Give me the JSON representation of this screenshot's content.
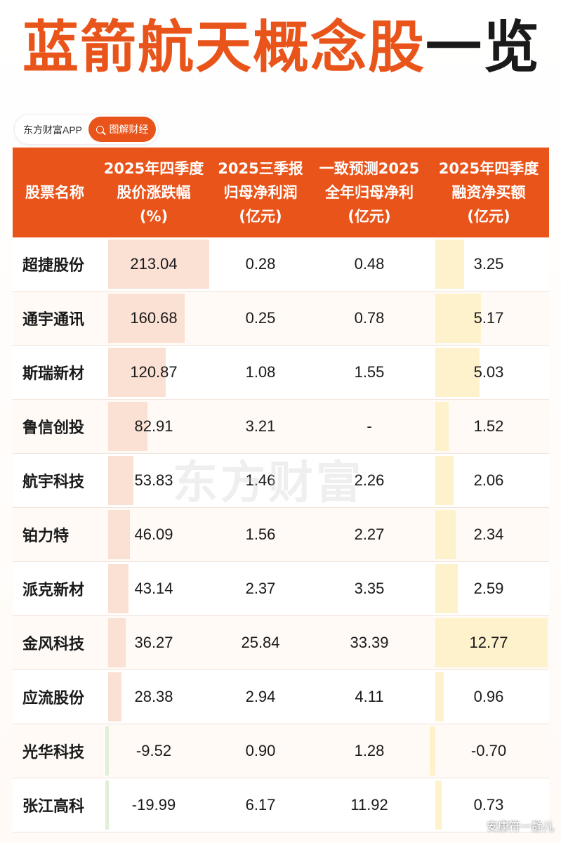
{
  "title": {
    "part1": "蓝箭航天概念股",
    "part2": "一览"
  },
  "brand": {
    "name": "东方财富APP",
    "button_label": "图解财经"
  },
  "watermark": "东方财富",
  "footer_mark": "安康符一静儿",
  "table": {
    "headers": [
      {
        "lines": [
          "股票名称"
        ]
      },
      {
        "lines": [
          "2025年四季度",
          "股价涨跌幅",
          "(%)"
        ]
      },
      {
        "lines": [
          "2025三季报",
          "归母净利润",
          "(亿元)"
        ]
      },
      {
        "lines": [
          "一致预测2025",
          "全年归母净利",
          "(亿元)"
        ]
      },
      {
        "lines": [
          "2025年四季度",
          "融资净买额",
          "(亿元)"
        ]
      }
    ]
  },
  "chart_data": {
    "type": "table",
    "columns": [
      "股票名称",
      "2025年四季度股价涨跌幅(%)",
      "2025三季报归母净利润(亿元)",
      "一致预测2025全年归母净利(亿元)",
      "2025年四季度融资净买额(亿元)"
    ],
    "rows": [
      {
        "name": "超捷股份",
        "change": "213.04",
        "profit_q3": "0.28",
        "forecast": "0.48",
        "margin": "3.25"
      },
      {
        "name": "通宇通讯",
        "change": "160.68",
        "profit_q3": "0.25",
        "forecast": "0.78",
        "margin": "5.17"
      },
      {
        "name": "斯瑞新材",
        "change": "120.87",
        "profit_q3": "1.08",
        "forecast": "1.55",
        "margin": "5.03"
      },
      {
        "name": "鲁信创投",
        "change": "82.91",
        "profit_q3": "3.21",
        "forecast": "-",
        "margin": "1.52"
      },
      {
        "name": "航宇科技",
        "change": "53.83",
        "profit_q3": "1.46",
        "forecast": "2.26",
        "margin": "2.06"
      },
      {
        "name": "铂力特",
        "change": "46.09",
        "profit_q3": "1.56",
        "forecast": "2.27",
        "margin": "2.34"
      },
      {
        "name": "派克新材",
        "change": "43.14",
        "profit_q3": "2.37",
        "forecast": "3.35",
        "margin": "2.59"
      },
      {
        "name": "金风科技",
        "change": "36.27",
        "profit_q3": "25.84",
        "forecast": "33.39",
        "margin": "12.77"
      },
      {
        "name": "应流股份",
        "change": "28.38",
        "profit_q3": "2.94",
        "forecast": "4.11",
        "margin": "0.96"
      },
      {
        "name": "光华科技",
        "change": "-9.52",
        "profit_q3": "0.90",
        "forecast": "1.28",
        "margin": "-0.70"
      },
      {
        "name": "张江高科",
        "change": "-19.99",
        "profit_q3": "6.17",
        "forecast": "11.92",
        "margin": "0.73"
      }
    ],
    "bar_columns": [
      "change",
      "margin"
    ]
  }
}
